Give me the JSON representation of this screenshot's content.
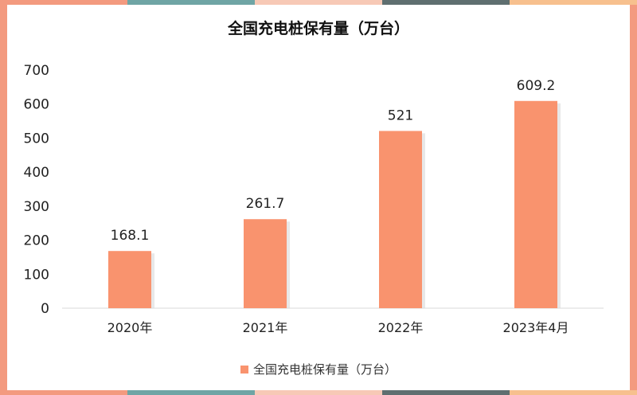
{
  "colors": {
    "bar": "#f9936e",
    "bar_shadow": "#d9d9d9",
    "border": "#f39a7f",
    "stripe_top": [
      "#f39a7f",
      "#6fa5a5",
      "#f7c9b6",
      "#5f6f70",
      "#f7c08e"
    ],
    "stripe_bottom": [
      "#f39a7f",
      "#6fa5a5",
      "#f7c9b6",
      "#5f6f70",
      "#f7c08e"
    ]
  },
  "chart_data": {
    "type": "bar",
    "title": "全国充电桩保有量（万台）",
    "categories": [
      "2020年",
      "2021年",
      "2022年",
      "2023年4月"
    ],
    "series": [
      {
        "name": "全国充电桩保有量（万台）",
        "values": [
          168.1,
          261.7,
          521,
          609.2
        ],
        "value_labels": [
          "168.1",
          "261.7",
          "521",
          "609.2"
        ]
      }
    ],
    "ylim": [
      0,
      700
    ],
    "yticks": [
      0,
      100,
      200,
      300,
      400,
      500,
      600,
      700
    ],
    "grid": false,
    "legend_position": "bottom"
  }
}
